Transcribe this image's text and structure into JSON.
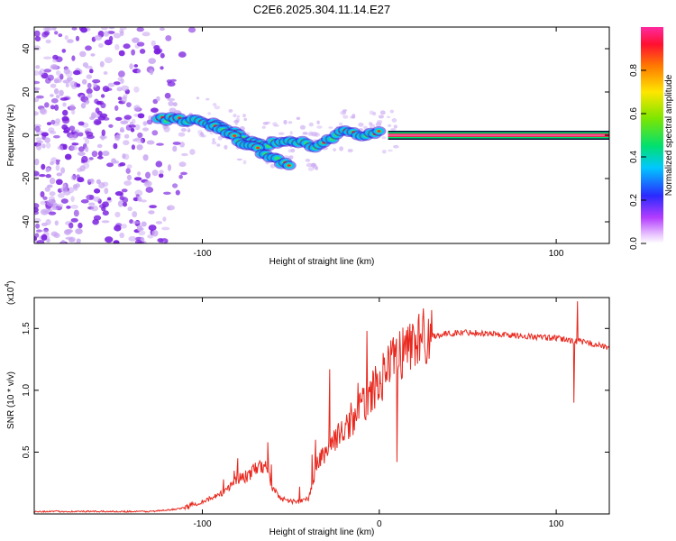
{
  "title": "C2E6.2025.304.11.14.E27",
  "colors": {
    "line": "#e8281e",
    "scatter": "#7a1fe0",
    "scatter_light": "#c9a6f2"
  },
  "chart_data": [
    {
      "type": "heatmap",
      "name": "spectrogram",
      "xlabel": "Height of straight line (km)",
      "ylabel": "Frequency (Hz)",
      "xlim": [
        -195,
        130
      ],
      "ylim": [
        -50,
        50
      ],
      "xticks": [
        -100,
        100
      ],
      "yticks": [
        -40,
        -20,
        0,
        20,
        40
      ],
      "noise_region_x": [
        -195,
        -105
      ],
      "ridge_path": {
        "x": [
          -125,
          -115,
          -105,
          -95,
          -85,
          -75,
          -65,
          -55,
          -45,
          -38,
          -32,
          -25,
          -18,
          -10,
          -5,
          0,
          5,
          130
        ],
        "y": [
          8,
          7,
          7.5,
          6,
          2,
          -2,
          -5,
          -2,
          -3,
          -6,
          -4,
          0,
          2,
          0,
          1,
          2,
          0,
          0
        ]
      },
      "branch_path": {
        "x": [
          -95,
          -85,
          -75,
          -68,
          -62,
          -55,
          -50
        ],
        "y": [
          5,
          0,
          -4,
          -7,
          -10,
          -13,
          -15
        ]
      },
      "colorbar": {
        "label": "Normalized spectral amplitude",
        "ticks": [
          "0.0",
          "0.2",
          "0.4",
          "0.6",
          "0.8"
        ],
        "tick_values": [
          0.0,
          0.2,
          0.4,
          0.6,
          0.8
        ],
        "range": [
          0,
          1
        ]
      }
    },
    {
      "type": "line",
      "name": "snr",
      "xlabel": "Height of straight line (km)",
      "ylabel": "SNR (10 * v/v)",
      "exponent_label": "(x10",
      "exponent": "4",
      "exponent_close": ")",
      "xlim": [
        -195,
        130
      ],
      "ylim": [
        0,
        1.75
      ],
      "xticks": [
        -100,
        0,
        100
      ],
      "yticks": [
        0.5,
        1.0,
        1.5
      ],
      "ytick_labels": [
        "0.5",
        "1.0",
        "1.5"
      ],
      "series": [
        {
          "name": "SNR",
          "envelope_x": [
            -195,
            -130,
            -120,
            -110,
            -100,
            -90,
            -85,
            -80,
            -75,
            -70,
            -65,
            -60,
            -55,
            -50,
            -45,
            -40,
            -35,
            -30,
            -25,
            -20,
            -15,
            -10,
            -5,
            0,
            5,
            10,
            20,
            30,
            40,
            50,
            60,
            70,
            80,
            90,
            100,
            110,
            120,
            130
          ],
          "envelope_y": [
            0.02,
            0.02,
            0.03,
            0.05,
            0.1,
            0.15,
            0.22,
            0.28,
            0.3,
            0.35,
            0.4,
            0.2,
            0.12,
            0.1,
            0.1,
            0.12,
            0.4,
            0.5,
            0.6,
            0.65,
            0.75,
            0.85,
            0.95,
            1.05,
            1.15,
            1.25,
            1.38,
            1.44,
            1.46,
            1.47,
            1.46,
            1.45,
            1.44,
            1.43,
            1.42,
            1.4,
            1.38,
            1.34
          ],
          "spikes": [
            {
              "x": -88,
              "y": 0.28
            },
            {
              "x": -82,
              "y": 0.35
            },
            {
              "x": -80,
              "y": 0.45
            },
            {
              "x": -72,
              "y": 0.38
            },
            {
              "x": -63,
              "y": 0.58
            },
            {
              "x": -61,
              "y": 0.4
            },
            {
              "x": -45,
              "y": 0.22
            },
            {
              "x": -38,
              "y": 0.48
            },
            {
              "x": -36,
              "y": 0.6
            },
            {
              "x": -28,
              "y": 1.17
            },
            {
              "x": -22,
              "y": 0.65
            },
            {
              "x": -16,
              "y": 0.9
            },
            {
              "x": -12,
              "y": 1.06
            },
            {
              "x": -7,
              "y": 1.48
            },
            {
              "x": -3,
              "y": 1.0
            },
            {
              "x": 5,
              "y": 1.36
            },
            {
              "x": 10,
              "y": 0.42
            },
            {
              "x": 110,
              "y": 0.9
            },
            {
              "x": 112,
              "y": 1.72
            }
          ]
        }
      ]
    }
  ]
}
